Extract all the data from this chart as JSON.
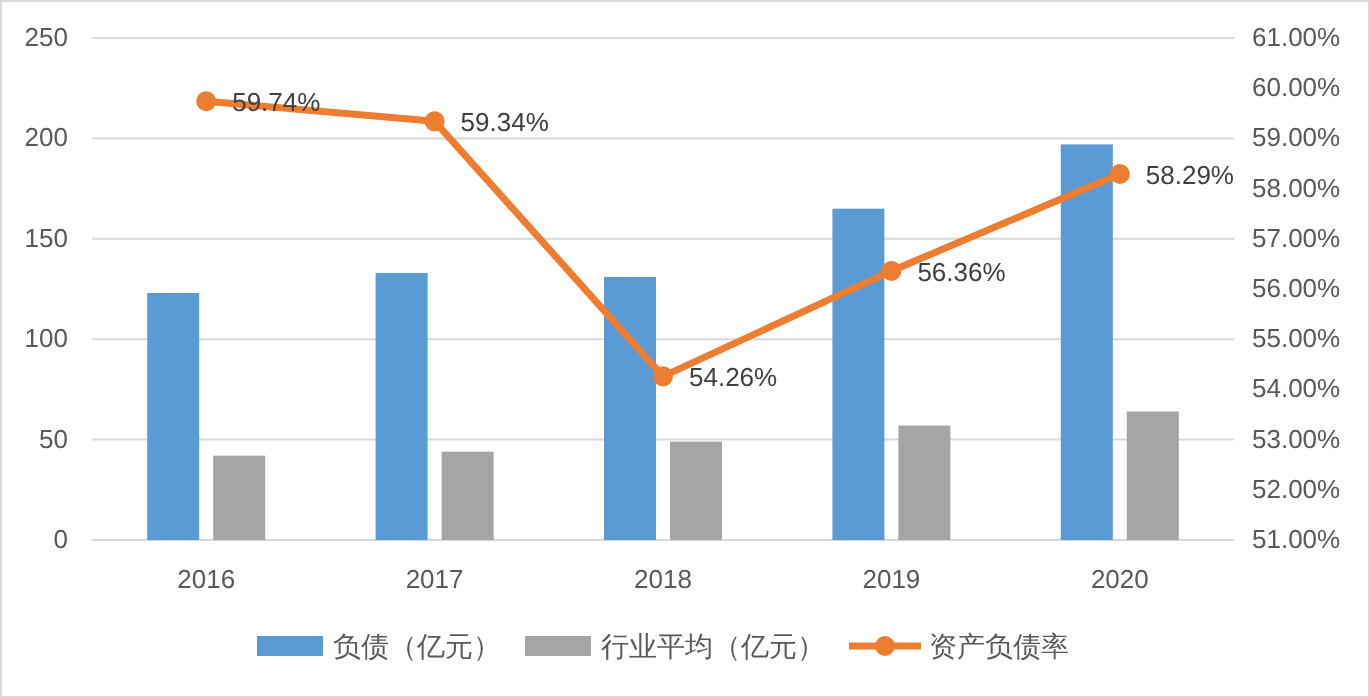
{
  "chart_data": {
    "type": "bar",
    "categories": [
      "2016",
      "2017",
      "2018",
      "2019",
      "2020"
    ],
    "series": [
      {
        "name": "负债（亿元）",
        "color": "#5b9bd5",
        "values": [
          123,
          133,
          131,
          165,
          197
        ]
      },
      {
        "name": "行业平均（亿元）",
        "color": "#a5a5a5",
        "values": [
          42,
          44,
          49,
          57,
          64
        ]
      },
      {
        "name": "资产负债率",
        "type": "line",
        "axis": "y2",
        "color": "#ed7d31",
        "marker": "circle",
        "values": [
          59.74,
          59.34,
          54.26,
          56.36,
          58.29
        ],
        "value_labels": [
          "59.74%",
          "59.34%",
          "54.26%",
          "56.36%",
          "58.29%"
        ]
      }
    ],
    "ylim": [
      0,
      250
    ],
    "yticks": [
      0,
      50,
      100,
      150,
      200,
      250
    ],
    "y2lim": [
      51,
      61
    ],
    "y2ticks": [
      {
        "value": 51,
        "label": "51.00%"
      },
      {
        "value": 52,
        "label": "52.00%"
      },
      {
        "value": 53,
        "label": "53.00%"
      },
      {
        "value": 54,
        "label": "54.00%"
      },
      {
        "value": 55,
        "label": "55.00%"
      },
      {
        "value": 56,
        "label": "56.00%"
      },
      {
        "value": 57,
        "label": "57.00%"
      },
      {
        "value": 58,
        "label": "58.00%"
      },
      {
        "value": 59,
        "label": "59.00%"
      },
      {
        "value": 60,
        "label": "60.00%"
      },
      {
        "value": 61,
        "label": "61.00%"
      }
    ],
    "grid": "y",
    "legend": "bottom"
  }
}
